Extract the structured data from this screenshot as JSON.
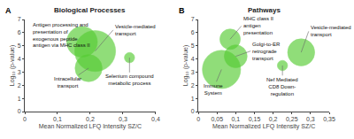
{
  "chart_data": [
    {
      "type": "bubble",
      "title": "Biological Processes",
      "xlabel": "Mean Normalized LFQ Intensity SZ/C",
      "ylabel": "Log₁₀ (p-value)",
      "x": [
        0.175,
        0.215,
        0.195,
        0.32
      ],
      "values": [
        5.3,
        4.6,
        3.3,
        4.1
      ],
      "sizes": [
        900,
        1600,
        700,
        100
      ],
      "color": "#55cc33",
      "xlim": [
        0,
        0.4
      ],
      "ylim": [
        0,
        7
      ],
      "xticks": [
        0,
        {
          "value": 0.1,
          "label": "0,1"
        },
        {
          "value": 0.2,
          "label": "0,2"
        },
        {
          "value": 0.3,
          "label": "0,3"
        },
        {
          "value": 0.4,
          "label": "0,4"
        }
      ],
      "yticks": [
        0,
        1,
        2,
        3,
        4,
        5,
        6,
        7
      ],
      "grid": false,
      "annotations": [
        {
          "text": "A"
        },
        {
          "text": "Antigen processing and\npresentation of\nexogenous peptide\nantigen via MHC class II",
          "x": 0.175,
          "y": 5.3,
          "text_x": 0.02,
          "text_y": 5.8
        },
        {
          "text": "Vesicle-mediated\ntransport",
          "x": 0.215,
          "y": 4.6,
          "text_x": 0.27,
          "text_y": 6.2
        },
        {
          "text": "Intracellular\ntransport",
          "x": 0.195,
          "y": 3.3,
          "text_x": 0.13,
          "text_y": 2.2
        },
        {
          "text": "Selenium compound\nmetabolic process",
          "x": 0.32,
          "y": 4.1,
          "text_x": 0.32,
          "text_y": 2.4
        }
      ]
    },
    {
      "type": "bubble",
      "title": "Pathways",
      "xlabel": "Mean Normalized LFQ Intensity SZ/C",
      "ylabel": "Log₁₀ (p-value)",
      "x": [
        0.062,
        0.085,
        0.1,
        0.225,
        0.275
      ],
      "values": [
        3.2,
        5.5,
        4.2,
        3.5,
        4.5
      ],
      "sizes": [
        1400,
        400,
        500,
        100,
        700
      ],
      "color": "#55cc33",
      "xlim": [
        0,
        0.35
      ],
      "ylim": [
        0,
        7
      ],
      "xticks": [
        0,
        {
          "value": 0.05,
          "label": "0,05"
        },
        {
          "value": 0.1,
          "label": "0,1"
        },
        {
          "value": 0.15,
          "label": "0,15"
        },
        {
          "value": 0.2,
          "label": "0,2"
        },
        {
          "value": 0.25,
          "label": "0,25"
        },
        {
          "value": 0.3,
          "label": "0,3"
        },
        {
          "value": 0.35,
          "label": "0,35"
        }
      ],
      "yticks": [
        0,
        1,
        2,
        3,
        4,
        5,
        6,
        7
      ],
      "grid": false,
      "annotations": [
        {
          "text": "B"
        },
        {
          "text": "Immune\nSystem",
          "x": 0.062,
          "y": 3.2,
          "text_x": 0.04,
          "text_y": 1.7
        },
        {
          "text": "MHC class II\nantigen\npresentation",
          "x": 0.085,
          "y": 5.5,
          "text_x": 0.115,
          "text_y": 6.5
        },
        {
          "text": "Golgi-to-ER\nretrograde\ntransport",
          "x": 0.1,
          "y": 4.2,
          "text_x": 0.14,
          "text_y": 4.6
        },
        {
          "text": "Nef Mediated\nCD8 Down-\nregulation",
          "x": 0.225,
          "y": 3.5,
          "text_x": 0.225,
          "text_y": 1.9
        },
        {
          "text": "Vesicle-mediated\ntransport",
          "x": 0.275,
          "y": 4.5,
          "text_x": 0.295,
          "text_y": 6.1
        }
      ]
    }
  ]
}
